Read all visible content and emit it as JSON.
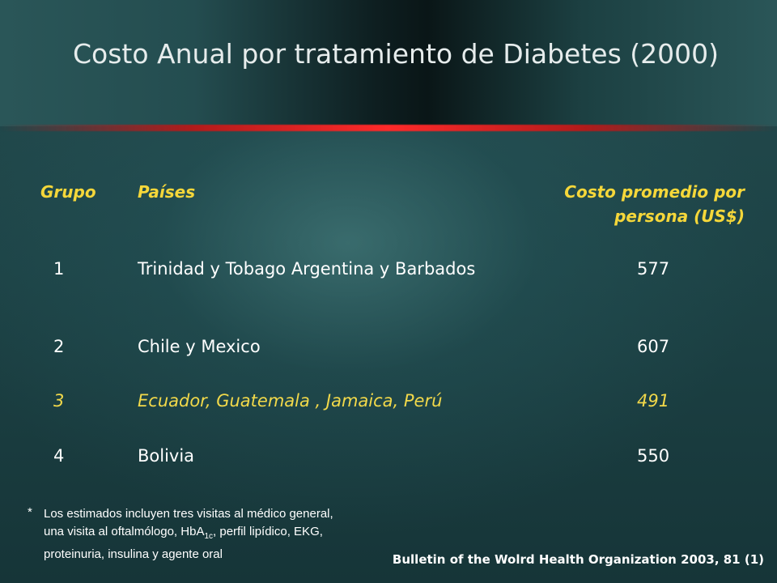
{
  "title": "Costo Anual por tratamiento de Diabetes (2000)",
  "table": {
    "headers": {
      "grupo": "Grupo",
      "paises": "Países",
      "costo": "Costo promedio por persona (US$)"
    },
    "rows": [
      {
        "grupo": "1",
        "paises": "Trinidad y Tobago Argentina y  Barbados",
        "costo": "577"
      },
      {
        "grupo": "2",
        "paises": "Chile y Mexico",
        "costo": "607"
      },
      {
        "grupo": "3",
        "paises": "Ecuador, Guatemala , Jamaica, Perú",
        "costo": "491"
      },
      {
        "grupo": "4",
        "paises": "Bolivia",
        "costo": "550"
      }
    ]
  },
  "footnote": {
    "mark": "*",
    "line1": "Los estimados incluyen tres visitas al médico general, una visita al oftalmólogo, HbA",
    "sub": "1c",
    "line2": ", perfil lipídico, EKG, proteinuria, insulina y agente oral"
  },
  "source": "Bulletin of the Wolrd Health Organization 2003, 81 (1)",
  "colors": {
    "header_text": "#f5d73a",
    "highlight_row": "#f2d94a",
    "accent_line": "#ff2a2a",
    "background": "#1d4346"
  }
}
